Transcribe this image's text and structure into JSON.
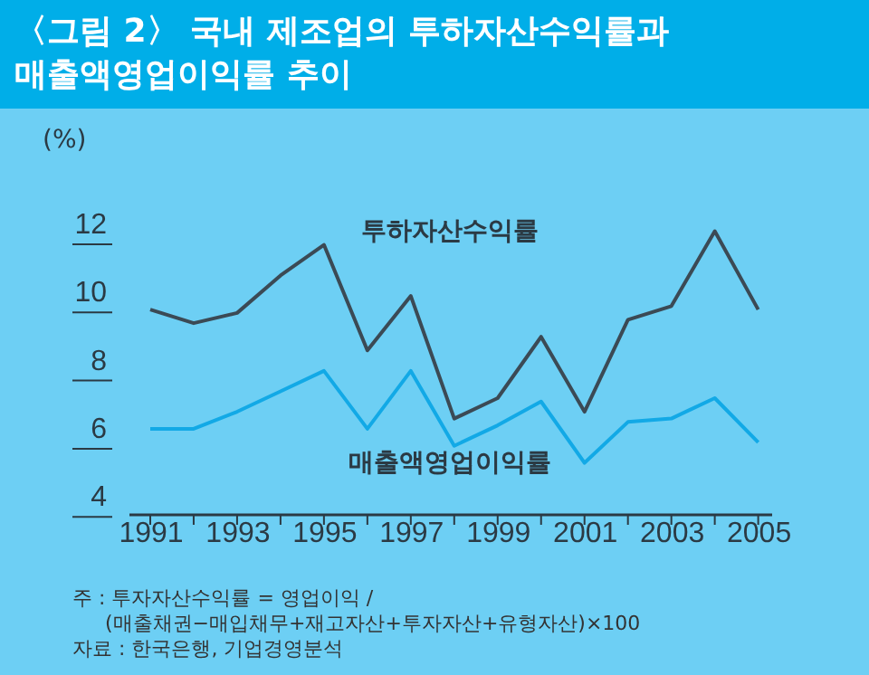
{
  "chart_data": {
    "type": "line",
    "title": "〈그림 2〉 국내 제조업의 투하자산수익률과 매출액영업이익률 추이",
    "ylabel": "(%)",
    "x": [
      1991,
      1992,
      1993,
      1994,
      1995,
      1996,
      1997,
      1998,
      1999,
      2000,
      2001,
      2002,
      2003,
      2004,
      2005
    ],
    "series": [
      {
        "name": "투하자산수익률",
        "color": "#3b4a55",
        "values": [
          9.5,
          9.1,
          9.4,
          10.5,
          11.4,
          8.3,
          9.9,
          6.3,
          6.9,
          8.7,
          6.5,
          9.2,
          9.6,
          11.8,
          9.5
        ]
      },
      {
        "name": "매출액영업이익률",
        "color": "#12a9e6",
        "values": [
          6.0,
          6.0,
          6.5,
          7.1,
          7.7,
          6.0,
          7.7,
          5.5,
          6.1,
          6.8,
          5.0,
          6.2,
          6.3,
          6.9,
          5.6
        ]
      }
    ],
    "xlim": [
      1990.5,
      2005.3
    ],
    "xticks": [
      1991,
      {
        "value": 1992,
        "label": null
      },
      1993,
      {
        "value": 1994,
        "label": null
      },
      1995,
      {
        "value": 1996,
        "label": null
      },
      1997,
      {
        "value": 1998,
        "label": null
      },
      1999,
      {
        "value": 2000,
        "label": null
      },
      2001,
      {
        "value": 2002,
        "label": null
      },
      2003,
      {
        "value": 2004,
        "label": null
      },
      2005
    ],
    "ylim": [
      3.5,
      12
    ],
    "yticks": [
      4,
      6,
      8,
      10,
      12
    ],
    "grid": false,
    "legend": false,
    "annotations": [
      "주 : 투자자산수익률 = 영업이익 /",
      "(매출채권−매입채무+재고자산+투자자산+유형자산)×100",
      "자료 : 한국은행, 기업경영분석"
    ]
  }
}
